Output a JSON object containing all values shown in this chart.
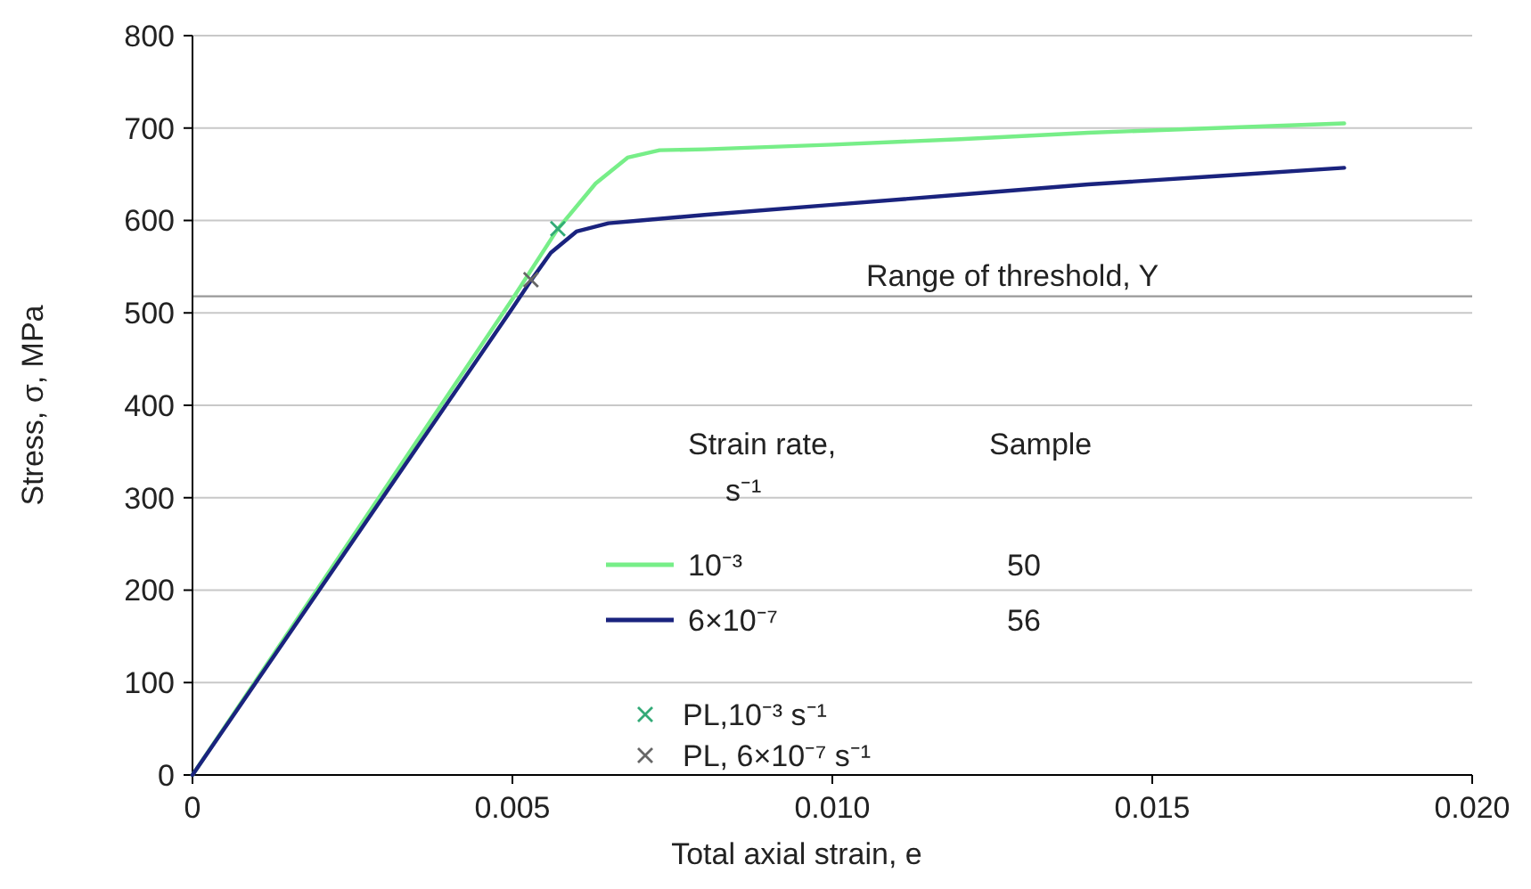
{
  "chart_data": {
    "type": "line",
    "xlabel": "Total axial strain, e",
    "ylabel": "Stress, σ, MPa",
    "legend_title": "Strain rate, s⁻¹",
    "xlim": [
      0,
      0.02
    ],
    "xticks": [
      0,
      0.005,
      {
        "value": 0.01,
        "label": "0.010"
      },
      0.015,
      {
        "value": 0.02,
        "label": "0.020"
      }
    ],
    "ylim": [
      0,
      800
    ],
    "yticks": [
      0,
      100,
      200,
      300,
      400,
      500,
      600,
      700,
      800
    ],
    "grid": "y",
    "legend": "bottom",
    "line_style": "solid",
    "series": [
      {
        "name": "10⁻³",
        "color": "#77ee88",
        "x": [
          0,
          0.005,
          0.0057,
          0.0063,
          0.0068,
          0.0073,
          0.008,
          0.01,
          0.012,
          0.014,
          0.016,
          0.018
        ],
        "values": [
          0,
          515,
          590,
          640,
          668,
          676,
          677,
          682,
          688,
          695,
          700,
          705
        ]
      },
      {
        "name": "6×10⁻⁷",
        "color": "#1a237e",
        "x": [
          0,
          0.005,
          0.0053,
          0.0056,
          0.006,
          0.0065,
          0.007,
          0.008,
          0.01,
          0.012,
          0.014,
          0.016,
          0.018
        ],
        "values": [
          0,
          505,
          536,
          565,
          588,
          597,
          600,
          606,
          617,
          628,
          639,
          648,
          657
        ]
      },
      {
        "name": "PL,10⁻³ s⁻¹",
        "type": "scatter",
        "marker": "cross",
        "color": "#33aa77",
        "x": [
          0.00571
        ],
        "values": [
          591
        ]
      },
      {
        "name": "PL, 6×10⁻⁷ s⁻¹",
        "type": "scatter",
        "marker": "cross",
        "color": "#666666",
        "x": [
          0.00529
        ],
        "values": [
          536
        ]
      }
    ],
    "ref_lines": [
      {
        "axis": "y",
        "value": 518,
        "label": "Range of threshold, Y",
        "color": "#999999"
      }
    ],
    "annotations": [
      "Sample",
      "50",
      "56"
    ]
  }
}
